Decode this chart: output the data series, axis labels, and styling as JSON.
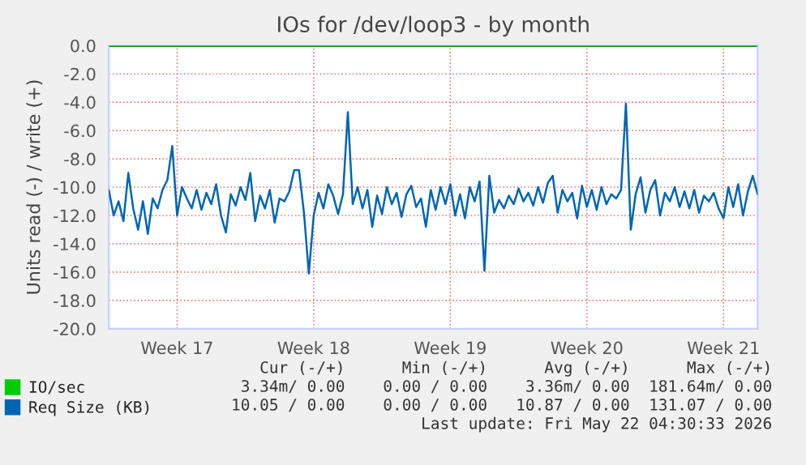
{
  "chart_data": {
    "type": "line",
    "title": "IOs for /dev/loop3 - by month",
    "ylabel": "Units read (-) / write (+)",
    "categories": [
      null,
      null,
      null,
      null,
      null,
      null,
      null,
      null,
      null,
      null,
      null,
      null,
      null,
      null,
      "Week 17",
      null,
      null,
      null,
      null,
      null,
      null,
      null,
      null,
      null,
      null,
      null,
      null,
      null,
      null,
      null,
      null,
      null,
      null,
      null,
      null,
      null,
      null,
      null,
      null,
      null,
      null,
      null,
      "Week 18",
      null,
      null,
      null,
      null,
      null,
      null,
      null,
      null,
      null,
      null,
      null,
      null,
      null,
      null,
      null,
      null,
      null,
      null,
      null,
      null,
      null,
      null,
      null,
      null,
      null,
      null,
      null,
      "Week 19",
      null,
      null,
      null,
      null,
      null,
      null,
      null,
      null,
      null,
      null,
      null,
      null,
      null,
      null,
      null,
      null,
      null,
      null,
      null,
      null,
      null,
      null,
      null,
      null,
      null,
      null,
      null,
      "Week 20",
      null,
      null,
      null,
      null,
      null,
      null,
      null,
      null,
      null,
      null,
      null,
      null,
      null,
      null,
      null,
      null,
      null,
      null,
      null,
      null,
      null,
      null,
      null,
      null,
      null,
      null,
      null,
      "Week 21",
      null,
      null,
      null,
      null,
      null,
      null,
      null
    ],
    "series": [
      {
        "name": "IO/sec",
        "color": "#00cc00",
        "values": [
          0,
          0,
          0,
          0,
          0,
          0,
          0,
          0,
          0,
          0,
          0,
          0,
          0,
          0,
          0,
          0,
          0,
          0,
          0,
          0,
          0,
          0,
          0,
          0,
          0,
          0,
          0,
          0,
          0,
          0,
          0,
          0,
          0,
          0,
          0,
          0,
          0,
          0,
          0,
          0,
          0,
          0,
          0,
          0,
          0,
          0,
          0,
          0,
          0,
          0,
          0,
          0,
          0,
          0,
          0,
          0,
          0,
          0,
          0,
          0,
          0,
          0,
          0,
          0,
          0,
          0,
          0,
          0,
          0,
          0,
          0,
          0,
          0,
          0,
          0,
          0,
          0,
          0,
          0,
          0,
          0,
          0,
          0,
          0,
          0,
          0,
          0,
          0,
          0,
          0,
          0,
          0,
          0,
          0,
          0,
          0,
          0,
          0,
          0,
          0,
          0,
          0,
          0,
          0,
          0,
          0,
          0,
          0,
          0,
          0,
          0,
          0,
          0,
          0,
          0,
          0,
          0,
          0,
          0,
          0,
          0,
          0,
          0,
          0,
          0,
          0,
          0,
          0,
          0,
          0,
          0,
          0,
          0,
          0
        ]
      },
      {
        "name": "Req Size (KB)",
        "color": "#0066b3",
        "values": [
          -10.2,
          -12.0,
          -11.0,
          -12.4,
          -9.0,
          -11.5,
          -13.0,
          -11.0,
          -13.3,
          -10.8,
          -11.5,
          -10.2,
          -9.5,
          -7.1,
          -12.0,
          -10.0,
          -10.8,
          -11.5,
          -10.2,
          -11.6,
          -10.4,
          -11.2,
          -9.8,
          -12.0,
          -13.2,
          -10.5,
          -11.3,
          -10.0,
          -10.9,
          -9.0,
          -12.4,
          -10.6,
          -11.5,
          -10.2,
          -12.5,
          -10.8,
          -11.0,
          -10.3,
          -8.8,
          -8.8,
          -11.8,
          -16.1,
          -12.0,
          -10.4,
          -11.5,
          -9.8,
          -10.6,
          -11.9,
          -10.5,
          -4.7,
          -11.2,
          -10.0,
          -11.5,
          -10.2,
          -12.8,
          -10.6,
          -11.9,
          -10.0,
          -11.2,
          -10.4,
          -12.1,
          -10.5,
          -9.9,
          -11.4,
          -10.8,
          -12.8,
          -10.2,
          -11.6,
          -10.0,
          -11.2,
          -9.8,
          -12.0,
          -10.5,
          -12.2,
          -10.0,
          -11.0,
          -9.6,
          -15.9,
          -9.2,
          -11.8,
          -10.9,
          -11.5,
          -10.6,
          -11.2,
          -10.1,
          -11.0,
          -10.4,
          -11.3,
          -10.0,
          -11.1,
          -9.7,
          -9.2,
          -11.8,
          -10.2,
          -11.0,
          -10.4,
          -12.2,
          -9.9,
          -11.4,
          -10.2,
          -11.6,
          -10.0,
          -11.2,
          -10.5,
          -10.8,
          -10.2,
          -4.1,
          -13.0,
          -10.5,
          -9.3,
          -11.8,
          -10.2,
          -9.5,
          -12.0,
          -10.4,
          -11.0,
          -10.0,
          -11.4,
          -10.3,
          -11.5,
          -10.2,
          -11.8,
          -10.6,
          -11.0,
          -10.4,
          -11.5,
          -12.2,
          -10.0,
          -11.4,
          -9.8,
          -12.0,
          -10.3,
          -9.2,
          -10.5
        ]
      }
    ],
    "ylim": [
      -20,
      0
    ],
    "yticks": [
      {
        "value": 0,
        "label": "0.0"
      },
      {
        "value": -2,
        "label": "-2.0"
      },
      {
        "value": -4,
        "label": "-4.0"
      },
      {
        "value": -6,
        "label": "-6.0"
      },
      {
        "value": -8,
        "label": "-8.0"
      },
      {
        "value": -10,
        "label": "-10.0"
      },
      {
        "value": -12,
        "label": "-12.0"
      },
      {
        "value": -14,
        "label": "-14.0"
      },
      {
        "value": -16,
        "label": "-16.0"
      },
      {
        "value": -18,
        "label": "-18.0"
      },
      {
        "value": -20,
        "label": "-20.0"
      }
    ],
    "ref_lines": [
      {
        "axis": "y",
        "value": 0,
        "color": "#000000"
      }
    ],
    "grid": true,
    "legend": "bottom left",
    "marker": "none",
    "line_style": "solid",
    "annotations": [
      "Cur (-/+)      Min (-/+)      Avg (-/+)      Max (-/+)",
      "3.34m/ 0.00    0.00 / 0.00    3.36m/ 0.00  181.64m/ 0.00",
      "10.05 / 0.00    0.00 / 0.00   10.87 / 0.00  131.07 / 0.00",
      "Last update: Fri May 22 04:30:33 2026"
    ]
  }
}
